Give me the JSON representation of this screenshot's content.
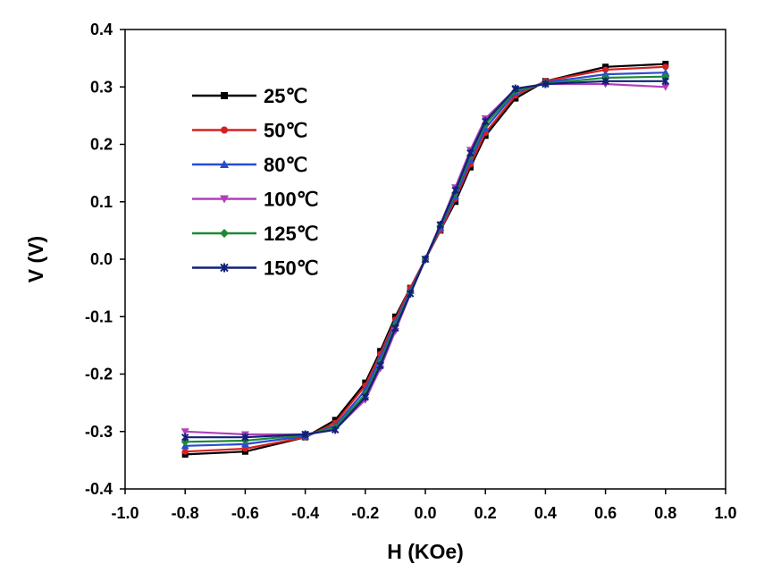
{
  "chart_data": {
    "type": "line",
    "xlabel": "H (KOe)",
    "ylabel": "V (V)",
    "xlim": [
      -1.0,
      1.0
    ],
    "ylim": [
      -0.4,
      0.4
    ],
    "x_ticks": [
      "-1.0",
      "-0.8",
      "-0.6",
      "-0.4",
      "-0.2",
      "0.0",
      "0.2",
      "0.4",
      "0.6",
      "0.8",
      "1.0"
    ],
    "y_ticks": [
      "0.4",
      "0.3",
      "0.2",
      "0.1",
      "0.0",
      "-0.1",
      "-0.2",
      "-0.3",
      "-0.4"
    ],
    "grid": false,
    "legend_position": "top-left",
    "x": [
      -0.8,
      -0.6,
      -0.4,
      -0.3,
      -0.2,
      -0.15,
      -0.1,
      -0.05,
      0.0,
      0.05,
      0.1,
      0.15,
      0.2,
      0.3,
      0.4,
      0.6,
      0.8
    ],
    "series": [
      {
        "name": "25℃",
        "color": "#000000",
        "marker": "square",
        "values": [
          -0.34,
          -0.335,
          -0.31,
          -0.28,
          -0.215,
          -0.16,
          -0.1,
          -0.05,
          0.0,
          0.05,
          0.1,
          0.16,
          0.215,
          0.28,
          0.31,
          0.335,
          0.34
        ]
      },
      {
        "name": "50℃",
        "color": "#d62020",
        "marker": "circle",
        "values": [
          -0.335,
          -0.33,
          -0.31,
          -0.285,
          -0.22,
          -0.165,
          -0.105,
          -0.05,
          0.0,
          0.05,
          0.105,
          0.165,
          0.22,
          0.285,
          0.31,
          0.33,
          0.335
        ]
      },
      {
        "name": "80℃",
        "color": "#2a4bd0",
        "marker": "triangle-up",
        "values": [
          -0.325,
          -0.322,
          -0.308,
          -0.29,
          -0.228,
          -0.172,
          -0.11,
          -0.055,
          0.0,
          0.055,
          0.11,
          0.172,
          0.228,
          0.29,
          0.308,
          0.322,
          0.325
        ]
      },
      {
        "name": "100℃",
        "color": "#b040b8",
        "marker": "triangle-down",
        "values": [
          -0.3,
          -0.305,
          -0.305,
          -0.296,
          -0.245,
          -0.19,
          -0.125,
          -0.06,
          0.0,
          0.06,
          0.125,
          0.19,
          0.245,
          0.296,
          0.305,
          0.305,
          0.3
        ]
      },
      {
        "name": "125℃",
        "color": "#1e8a36",
        "marker": "diamond",
        "values": [
          -0.318,
          -0.316,
          -0.306,
          -0.293,
          -0.235,
          -0.18,
          -0.115,
          -0.058,
          0.0,
          0.058,
          0.115,
          0.18,
          0.235,
          0.293,
          0.306,
          0.316,
          0.318
        ]
      },
      {
        "name": "150℃",
        "color": "#10207a",
        "marker": "cross",
        "values": [
          -0.31,
          -0.31,
          -0.305,
          -0.297,
          -0.24,
          -0.185,
          -0.12,
          -0.06,
          0.0,
          0.06,
          0.12,
          0.185,
          0.24,
          0.297,
          0.305,
          0.31,
          0.31
        ]
      }
    ]
  }
}
